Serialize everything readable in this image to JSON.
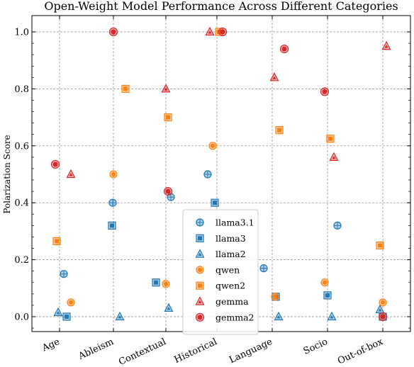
{
  "colors": {
    "blue": "#1f77b4",
    "orange": "#ff7f0e",
    "red": "#d62728"
  },
  "chart_data": {
    "type": "scatter",
    "title": "Open-Weight Model Performance Across Different Categories",
    "xlabel": "",
    "ylabel": "Polarization Score",
    "categories": [
      "Age",
      "Ableism",
      "Contextual",
      "Historical",
      "Language",
      "Socio",
      "Out-of-box"
    ],
    "ylim": [
      -0.05,
      1.02
    ],
    "yticks": [
      "0.0",
      "0.2",
      "0.4",
      "0.6",
      "0.8",
      "1.0"
    ],
    "grid": true,
    "legend_position": "lower-center",
    "series": [
      {
        "name": "llama3.1",
        "marker": "circle-plus",
        "color": "#1f77b4",
        "values": [
          0.15,
          0.4,
          0.42,
          0.5,
          0.17,
          0.32,
          null
        ]
      },
      {
        "name": "llama3",
        "marker": "square",
        "color": "#1f77b4",
        "values": [
          0.0,
          0.32,
          0.12,
          0.4,
          0.07,
          0.075,
          0.0
        ]
      },
      {
        "name": "llama2",
        "marker": "triangle",
        "color": "#1f77b4",
        "values": [
          0.015,
          0.0,
          0.03,
          null,
          0.0,
          0.0,
          0.025
        ]
      },
      {
        "name": "qwen",
        "marker": "circle-half",
        "color": "#ff7f0e",
        "values": [
          0.05,
          0.5,
          0.115,
          0.6,
          0.07,
          0.12,
          0.05
        ]
      },
      {
        "name": "qwen2",
        "marker": "square",
        "color": "#ff7f0e",
        "values": [
          0.265,
          0.8,
          0.7,
          1.0,
          0.655,
          0.625,
          0.25
        ]
      },
      {
        "name": "gemma",
        "marker": "triangle",
        "color": "#d62728",
        "values": [
          0.5,
          null,
          0.8,
          1.0,
          0.84,
          0.56,
          0.95
        ]
      },
      {
        "name": "gemma2",
        "marker": "circle-dot",
        "color": "#d62728",
        "values": [
          0.535,
          1.0,
          0.44,
          1.0,
          0.94,
          0.79,
          0.0
        ]
      }
    ]
  }
}
